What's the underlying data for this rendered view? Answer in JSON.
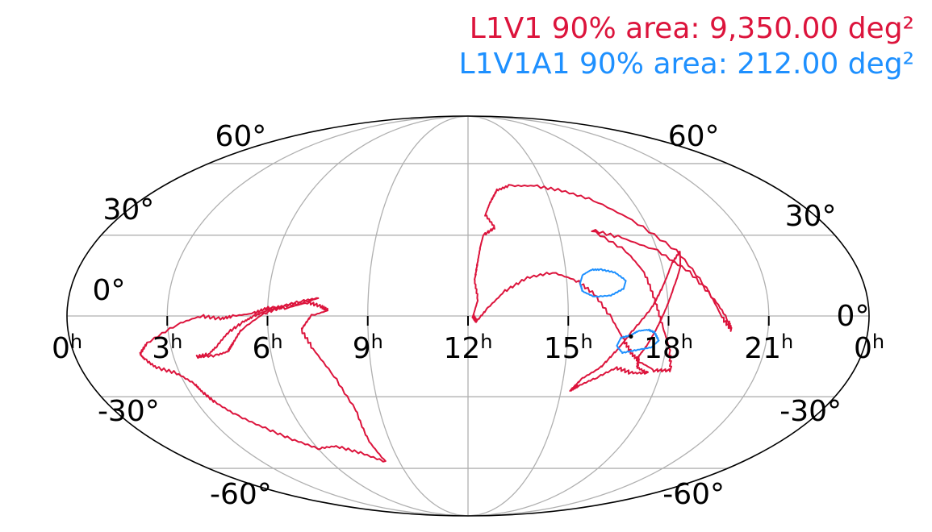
{
  "chart_data": {
    "type": "contour-map",
    "projection": "mollweide",
    "grid": true,
    "ra_ticks": [
      {
        "hours": 0,
        "label": "0",
        "suffix": "h",
        "side": "left"
      },
      {
        "hours": 21,
        "label": "21",
        "suffix": "h"
      },
      {
        "hours": 18,
        "label": "18",
        "suffix": "h"
      },
      {
        "hours": 15,
        "label": "15",
        "suffix": "h"
      },
      {
        "hours": 12,
        "label": "12",
        "suffix": "h"
      },
      {
        "hours": 9,
        "label": "9",
        "suffix": "h"
      },
      {
        "hours": 6,
        "label": "6",
        "suffix": "h"
      },
      {
        "hours": 3,
        "label": "3",
        "suffix": "h"
      },
      {
        "hours": 0,
        "label": "0",
        "suffix": "h",
        "side": "right"
      }
    ],
    "dec_ticks": [
      {
        "deg": 60,
        "label": "60°"
      },
      {
        "deg": 30,
        "label": "30°"
      },
      {
        "deg": 0,
        "label": "0°"
      },
      {
        "deg": -30,
        "label": "-30°"
      },
      {
        "deg": -60,
        "label": "-60°"
      }
    ],
    "legend": [
      {
        "text": "L1V1 90% area: 9,350.00 deg²",
        "color": "#dc143c"
      },
      {
        "text": "L1V1A1 90% area: 212.00 deg²",
        "color": "#1e90ff"
      }
    ],
    "legend_placement": "top-right",
    "series": [
      {
        "color": "#dc143c",
        "contours": [
          [
            [
              19.6,
              -0.6
            ],
            [
              19.2,
              10
            ],
            [
              18.6,
              24
            ],
            [
              17.6,
              36
            ],
            [
              16.6,
              44
            ],
            [
              15.6,
              48
            ],
            [
              14.6,
              50
            ],
            [
              13.6,
              50
            ],
            [
              13.1,
              48
            ],
            [
              12.8,
              43
            ],
            [
              12.6,
              38
            ],
            [
              12.9,
              33
            ],
            [
              12.5,
              30
            ],
            [
              12.4,
              26
            ],
            [
              12.3,
              20
            ],
            [
              12.2,
              13
            ],
            [
              12.3,
              6
            ],
            [
              12.15,
              0
            ],
            [
              12.25,
              -2
            ],
            [
              12.6,
              3
            ],
            [
              13.1,
              9
            ],
            [
              13.8,
              14
            ],
            [
              14.6,
              16
            ],
            [
              15.3,
              13
            ],
            [
              15.8,
              8
            ],
            [
              16.3,
              -1
            ],
            [
              16.7,
              -9
            ],
            [
              17.0,
              -14
            ],
            [
              17.3,
              -17
            ],
            [
              17.8,
              -20
            ],
            [
              18.3,
              -20
            ],
            [
              18.1,
              -12
            ],
            [
              17.8,
              -3
            ],
            [
              17.6,
              6
            ],
            [
              17.4,
              16
            ],
            [
              17.0,
              24
            ],
            [
              16.1,
              32
            ],
            [
              17.0,
              29
            ],
            [
              18.0,
              24
            ],
            [
              18.8,
              16
            ],
            [
              19.4,
              6
            ],
            [
              19.8,
              -2
            ],
            [
              19.9,
              -5
            ],
            [
              19.6,
              -0.6
            ]
          ],
          [
            [
              16.55,
              -12
            ],
            [
              16.9,
              -6
            ],
            [
              17.5,
              3
            ],
            [
              17.9,
              11
            ],
            [
              18.3,
              19
            ],
            [
              18.7,
              24
            ],
            [
              18.55,
              18
            ],
            [
              18.2,
              10
            ],
            [
              17.9,
              2
            ],
            [
              17.6,
              -6
            ],
            [
              17.4,
              -11
            ],
            [
              17.2,
              -15
            ],
            [
              17.25,
              -19
            ],
            [
              17.6,
              -21
            ],
            [
              17.1,
              -21
            ],
            [
              16.6,
              -19
            ],
            [
              16.0,
              -23
            ],
            [
              15.5,
              -26
            ],
            [
              15.3,
              -27.5
            ],
            [
              15.6,
              -23
            ],
            [
              16.1,
              -19
            ],
            [
              16.55,
              -12
            ]
          ],
          [
            [
              7.8,
              2
            ],
            [
              7.3,
              0
            ],
            [
              7.0,
              -5
            ],
            [
              7.3,
              -12
            ],
            [
              7.8,
              -22
            ],
            [
              8.2,
              -35
            ],
            [
              8.2,
              -48
            ],
            [
              8.4,
              -57
            ],
            [
              7.6,
              -53
            ],
            [
              6.8,
              -50
            ],
            [
              6.0,
              -51
            ],
            [
              5.3,
              -47
            ],
            [
              4.6,
              -42
            ],
            [
              4.0,
              -37
            ],
            [
              3.6,
              -32
            ],
            [
              3.4,
              -28
            ],
            [
              3.3,
              -25
            ],
            [
              2.9,
              -21
            ],
            [
              2.35,
              -19
            ],
            [
              2.1,
              -16
            ],
            [
              2.0,
              -14
            ],
            [
              2.3,
              -10
            ],
            [
              3.3,
              -3
            ],
            [
              4.0,
              0
            ],
            [
              4.6,
              -1
            ],
            [
              5.0,
              0
            ],
            [
              5.6,
              1
            ],
            [
              6.0,
              3
            ],
            [
              6.6,
              3
            ],
            [
              7.2,
              5
            ],
            [
              7.6,
              3.5
            ],
            [
              7.8,
              2
            ]
          ],
          [
            [
              7.5,
              6.5
            ],
            [
              7.1,
              5
            ],
            [
              6.5,
              3.5
            ],
            [
              5.9,
              1
            ],
            [
              5.2,
              -5
            ],
            [
              4.9,
              -10
            ],
            [
              4.7,
              -13
            ],
            [
              4.3,
              -14.5
            ],
            [
              3.7,
              -15
            ],
            [
              4.1,
              -14
            ],
            [
              4.4,
              -11
            ],
            [
              4.8,
              -6
            ],
            [
              5.3,
              -2
            ],
            [
              5.6,
              0
            ],
            [
              6.0,
              2
            ],
            [
              6.4,
              3.5
            ],
            [
              7.0,
              5.5
            ],
            [
              7.5,
              6.5
            ]
          ]
        ]
      },
      {
        "color": "#1e90ff",
        "contours": [
          [
            [
              16.1,
              17
            ],
            [
              16.5,
              16
            ],
            [
              16.8,
              13
            ],
            [
              16.7,
              10
            ],
            [
              16.3,
              7.5
            ],
            [
              15.8,
              7
            ],
            [
              15.45,
              9
            ],
            [
              15.4,
              12
            ],
            [
              15.5,
              15
            ],
            [
              15.8,
              17
            ],
            [
              16.1,
              17
            ]
          ],
          [
            [
              17.6,
              -6
            ],
            [
              17.75,
              -9
            ],
            [
              17.55,
              -11.5
            ],
            [
              17.1,
              -12.5
            ],
            [
              16.7,
              -13.5
            ],
            [
              16.5,
              -11
            ],
            [
              16.6,
              -8
            ],
            [
              16.9,
              -7
            ],
            [
              17.1,
              -5.5
            ],
            [
              17.4,
              -5
            ],
            [
              17.6,
              -6
            ]
          ]
        ]
      }
    ],
    "markers": [
      {
        "ra_hours": 16.9,
        "dec_deg": -7.5,
        "color": "#000000"
      }
    ]
  }
}
